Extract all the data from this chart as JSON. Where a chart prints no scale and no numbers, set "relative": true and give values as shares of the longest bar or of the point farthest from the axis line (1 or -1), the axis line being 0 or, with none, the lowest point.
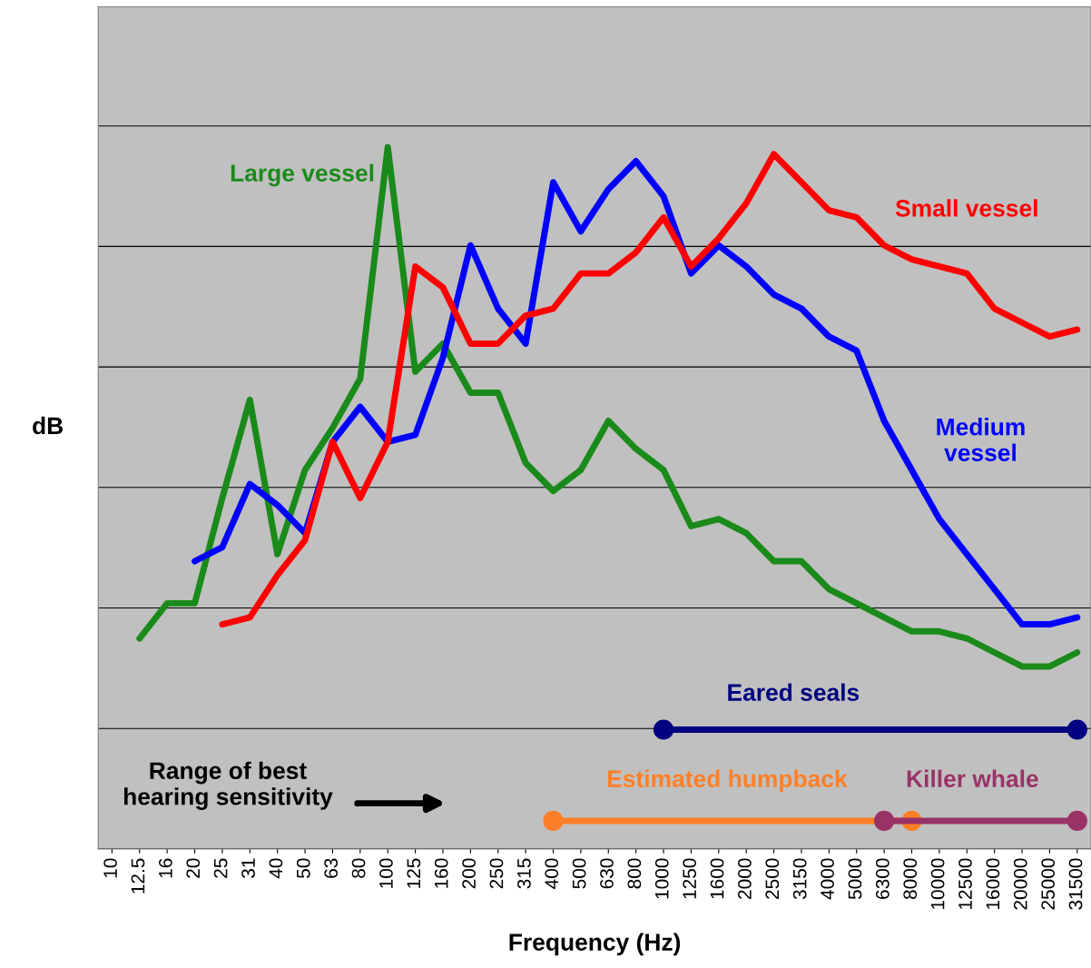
{
  "chart_data": {
    "type": "line",
    "relative": true,
    "xlabel": "Frequency (Hz)",
    "ylabel": "dB",
    "grid": "y",
    "categories": [
      "10",
      "12.5",
      "16",
      "20",
      "25",
      "31",
      "40",
      "50",
      "63",
      "80",
      "100",
      "125",
      "160",
      "200",
      "250",
      "315",
      "400",
      "500",
      "630",
      "800",
      "1000",
      "1250",
      "1600",
      "2000",
      "2500",
      "3150",
      "4000",
      "5000",
      "6300",
      "8000",
      "10000",
      "12500",
      "16000",
      "20000",
      "25000",
      "31500"
    ],
    "series": [
      {
        "name": "Large vessel",
        "color": "#1a8a1a",
        "values": [
          null,
          0.3,
          0.35,
          0.35,
          0.5,
          0.64,
          0.42,
          0.54,
          0.6,
          0.67,
          1.0,
          0.68,
          0.72,
          0.65,
          0.65,
          0.55,
          0.51,
          0.54,
          0.61,
          0.57,
          0.54,
          0.46,
          0.47,
          0.45,
          0.41,
          0.41,
          0.37,
          0.35,
          0.33,
          0.31,
          0.31,
          0.3,
          0.28,
          0.26,
          0.26,
          0.28
        ]
      },
      {
        "name": "Medium\nvessel",
        "color": "#0000ff",
        "values": [
          null,
          null,
          null,
          0.41,
          0.43,
          0.52,
          0.49,
          0.45,
          0.58,
          0.63,
          0.58,
          0.59,
          0.7,
          0.86,
          0.77,
          0.72,
          0.95,
          0.88,
          0.94,
          0.98,
          0.93,
          0.82,
          0.86,
          0.83,
          0.79,
          0.77,
          0.73,
          0.71,
          0.61,
          0.54,
          0.47,
          0.42,
          0.37,
          0.32,
          0.32,
          0.33
        ]
      },
      {
        "name": "Small vessel",
        "color": "#ff0000",
        "values": [
          null,
          null,
          null,
          null,
          0.32,
          0.33,
          0.39,
          0.44,
          0.58,
          0.5,
          0.58,
          0.83,
          0.8,
          0.72,
          0.72,
          0.76,
          0.77,
          0.82,
          0.82,
          0.85,
          0.9,
          0.83,
          0.87,
          0.92,
          0.99,
          0.95,
          0.91,
          0.9,
          0.86,
          0.84,
          0.83,
          0.82,
          0.77,
          0.75,
          0.73,
          0.74
        ]
      },
      {
        "name": "Eared seals",
        "color": "#000080",
        "marker": "circle",
        "values": [
          null,
          null,
          null,
          null,
          null,
          null,
          null,
          null,
          null,
          null,
          null,
          null,
          null,
          null,
          null,
          null,
          null,
          null,
          null,
          null,
          0.17,
          null,
          null,
          null,
          null,
          null,
          null,
          null,
          null,
          null,
          null,
          null,
          null,
          null,
          null,
          0.17
        ]
      },
      {
        "name": "Estimated humpback",
        "color": "#ff7f27",
        "marker": "circle",
        "values": [
          null,
          null,
          null,
          null,
          null,
          null,
          null,
          null,
          null,
          null,
          null,
          null,
          null,
          null,
          null,
          null,
          0.04,
          null,
          null,
          null,
          null,
          null,
          null,
          null,
          null,
          null,
          null,
          null,
          null,
          0.04,
          null,
          null,
          null,
          null,
          null,
          null
        ]
      },
      {
        "name": "Killer whale",
        "color": "#993366",
        "marker": "circle",
        "values": [
          null,
          null,
          null,
          null,
          null,
          null,
          null,
          null,
          null,
          null,
          null,
          null,
          null,
          null,
          null,
          null,
          null,
          null,
          null,
          null,
          null,
          null,
          null,
          null,
          null,
          null,
          null,
          null,
          0.04,
          null,
          null,
          null,
          null,
          null,
          null,
          0.04
        ]
      }
    ],
    "annotations": [
      "Range of best\nhearing sensitivity"
    ]
  }
}
